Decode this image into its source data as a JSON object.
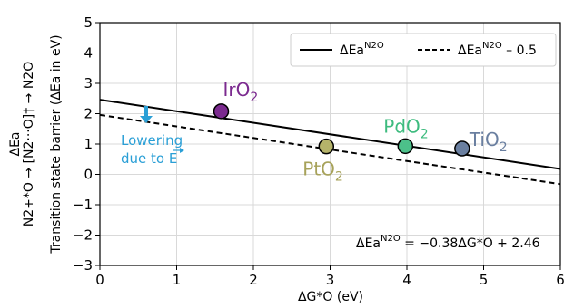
{
  "chart_data": {
    "type": "scatter",
    "xlabel": "ΔG*O (eV)",
    "ylabel_outer": "N2+*O → [N2···O]† → N2O",
    "ylabel_outer_arrow": "ΔEa",
    "ylabel_inner": "Transition state barrier (ΔEa in eV)",
    "xlim": [
      0,
      6
    ],
    "ylim": [
      -3,
      5
    ],
    "x_ticks": [
      "0",
      "1",
      "2",
      "3",
      "4",
      "5",
      "6"
    ],
    "y_ticks": [
      "−3",
      "−2",
      "−1",
      "0",
      "1",
      "2",
      "3",
      "4",
      "5"
    ],
    "grid": true,
    "points": [
      {
        "name": "IrO2",
        "x": 1.58,
        "y": 2.08,
        "color": "#7b2a8f",
        "label_color": "#7b2a8f"
      },
      {
        "name": "PtO2",
        "x": 2.95,
        "y": 0.92,
        "color": "#b5b36a",
        "label_color": "#a7a25a"
      },
      {
        "name": "PdO2",
        "x": 3.98,
        "y": 0.93,
        "color": "#4cc08a",
        "label_color": "#3dbb7e"
      },
      {
        "name": "TiO2",
        "x": 4.72,
        "y": 0.85,
        "color": "#6a7fa0",
        "label_color": "#6a7fa0"
      }
    ],
    "lines": [
      {
        "name": "ΔEa^N2O",
        "slope": -0.38,
        "intercept": 2.46,
        "style": "solid"
      },
      {
        "name": "ΔEa^N2O – 0.5",
        "slope": -0.38,
        "intercept": 1.96,
        "style": "dashed"
      }
    ],
    "legend_position": "top-right",
    "legend": {
      "solid_label": "ΔEa",
      "solid_sup": "N2O",
      "dashed_label": "ΔEa",
      "dashed_sup": "N2O",
      "dashed_suffix": " – 0.5"
    },
    "equation": {
      "lhs": "ΔEa",
      "sup": "N2O",
      "rhs": " = −0.38ΔG*O + 2.46"
    },
    "annotation": {
      "line1": "Lowering",
      "line2": "due to E",
      "arrow_color": "#2a9fd6"
    }
  }
}
